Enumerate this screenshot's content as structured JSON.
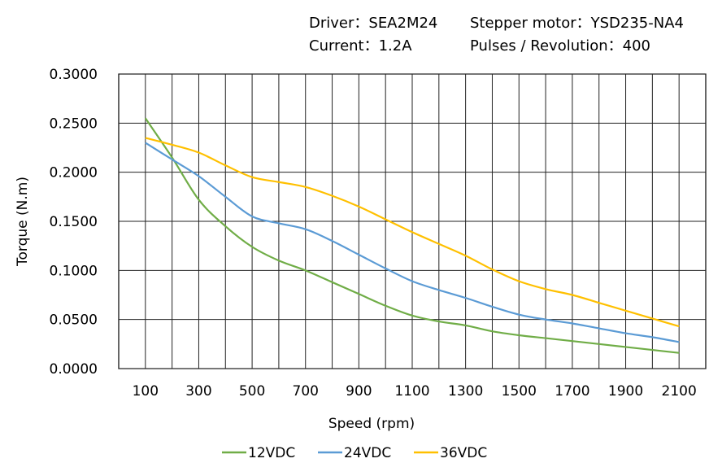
{
  "header": {
    "driver": "Driver：SEA2M24",
    "motor": "Stepper motor：YSD235-NA4",
    "current": "Current：1.2A",
    "pulses": "Pulses / Revolution：400"
  },
  "chart_data": {
    "type": "line",
    "xlabel": "Speed  (rpm)",
    "ylabel": "Torque (N.m)",
    "xlim": [
      0,
      2200
    ],
    "ylim": [
      0,
      0.3
    ],
    "xticks": [
      "100",
      "300",
      "500",
      "700",
      "900",
      "1100",
      "1300",
      "1500",
      "1700",
      "1900",
      "2100"
    ],
    "yticks": [
      "0.0000",
      "0.0500",
      "0.1000",
      "0.1500",
      "0.2000",
      "0.2500",
      "0.3000"
    ],
    "grid": true,
    "legend": "bottom",
    "x": [
      100,
      200,
      300,
      400,
      500,
      600,
      700,
      800,
      900,
      1000,
      1100,
      1200,
      1300,
      1400,
      1500,
      1600,
      1700,
      1800,
      1900,
      2000,
      2100
    ],
    "series": [
      {
        "name": "12VDC",
        "color": "#70ad47",
        "values": [
          0.255,
          0.215,
          0.172,
          0.145,
          0.124,
          0.11,
          0.1,
          0.088,
          0.076,
          0.064,
          0.054,
          0.048,
          0.044,
          0.038,
          0.034,
          0.031,
          0.028,
          0.025,
          0.022,
          0.019,
          0.016
        ]
      },
      {
        "name": "24VDC",
        "color": "#5b9bd5",
        "values": [
          0.23,
          0.213,
          0.196,
          0.175,
          0.155,
          0.148,
          0.142,
          0.13,
          0.116,
          0.102,
          0.089,
          0.08,
          0.072,
          0.063,
          0.055,
          0.05,
          0.046,
          0.041,
          0.036,
          0.032,
          0.027
        ]
      },
      {
        "name": "36VDC",
        "color": "#ffc000",
        "values": [
          0.235,
          0.228,
          0.22,
          0.207,
          0.195,
          0.19,
          0.185,
          0.176,
          0.165,
          0.152,
          0.139,
          0.127,
          0.115,
          0.101,
          0.089,
          0.081,
          0.075,
          0.067,
          0.059,
          0.051,
          0.043
        ]
      }
    ]
  }
}
